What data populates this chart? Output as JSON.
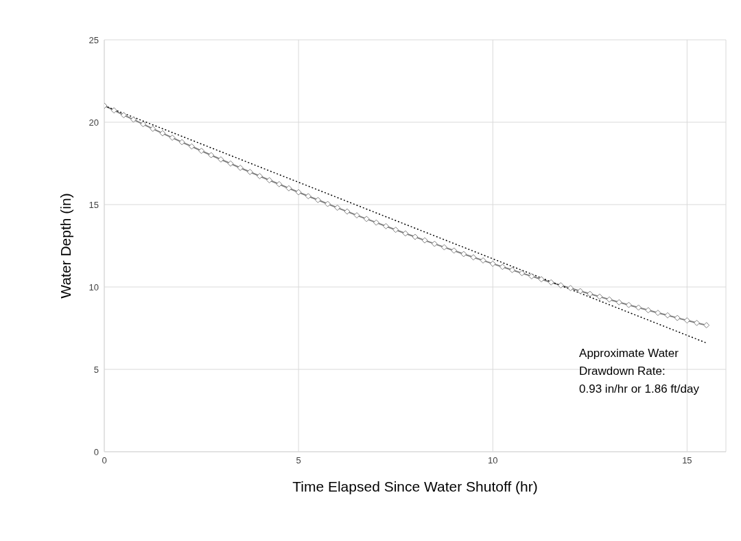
{
  "chart_data": {
    "type": "line",
    "xlabel": "Time Elapsed Since Water Shutoff (hr)",
    "ylabel": "Water Depth (in)",
    "xlim": [
      0,
      16
    ],
    "xticks": [
      0,
      5,
      10,
      15
    ],
    "ylim": [
      0,
      25
    ],
    "yticks": [
      0,
      5,
      10,
      15,
      20,
      25
    ],
    "grid": true,
    "annotations": [
      "Approximate Water\nDrawdown Rate:\n0.93 in/hr or 1.86 ft/day"
    ],
    "series": [
      {
        "color": "#808080",
        "marker": "diamond",
        "line_style": "solid",
        "x": [
          0,
          0.25,
          0.5,
          0.75,
          1,
          1.25,
          1.5,
          1.75,
          2,
          2.25,
          2.5,
          2.75,
          3,
          3.25,
          3.5,
          3.75,
          4,
          4.25,
          4.5,
          4.75,
          5,
          5.25,
          5.5,
          5.75,
          6,
          6.25,
          6.5,
          6.75,
          7,
          7.25,
          7.5,
          7.75,
          8,
          8.25,
          8.5,
          8.75,
          9,
          9.25,
          9.5,
          9.75,
          10,
          10.25,
          10.5,
          10.75,
          11,
          11.25,
          11.5,
          11.75,
          12,
          12.25,
          12.5,
          12.75,
          13,
          13.25,
          13.5,
          13.75,
          14,
          14.25,
          14.5,
          14.75,
          15,
          15.25,
          15.5
        ],
        "values": [
          21.0,
          20.72,
          20.43,
          20.16,
          19.88,
          19.6,
          19.33,
          19.06,
          18.79,
          18.53,
          18.26,
          18.0,
          17.74,
          17.49,
          17.23,
          16.98,
          16.73,
          16.48,
          16.24,
          15.99,
          15.75,
          15.51,
          15.28,
          15.04,
          14.81,
          14.58,
          14.35,
          14.13,
          13.91,
          13.69,
          13.47,
          13.25,
          13.04,
          12.83,
          12.62,
          12.41,
          12.21,
          12.0,
          11.8,
          11.61,
          11.41,
          11.22,
          11.03,
          10.84,
          10.65,
          10.47,
          10.28,
          10.1,
          9.93,
          9.75,
          9.58,
          9.41,
          9.24,
          9.07,
          8.91,
          8.75,
          8.59,
          8.43,
          8.28,
          8.12,
          7.97,
          7.82,
          7.68
        ]
      },
      {
        "color": "#000000",
        "marker": "none",
        "line_style": "dotted",
        "x": [
          0,
          15.5
        ],
        "values": [
          21.0,
          6.6
        ]
      }
    ]
  }
}
